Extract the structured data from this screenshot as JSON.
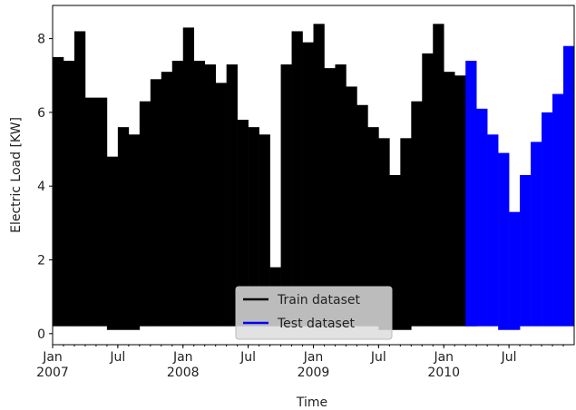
{
  "chart_data": {
    "type": "monthly-range",
    "x_label": "Time",
    "y_label": "Electric Load [KW]",
    "x": [
      "2007-01",
      "2007-02",
      "2007-03",
      "2007-04",
      "2007-05",
      "2007-06",
      "2007-07",
      "2007-08",
      "2007-09",
      "2007-10",
      "2007-11",
      "2007-12",
      "2008-01",
      "2008-02",
      "2008-03",
      "2008-04",
      "2008-05",
      "2008-06",
      "2008-07",
      "2008-08",
      "2008-09",
      "2008-10",
      "2008-11",
      "2008-12",
      "2009-01",
      "2009-02",
      "2009-03",
      "2009-04",
      "2009-05",
      "2009-06",
      "2009-07",
      "2009-08",
      "2009-09",
      "2009-10",
      "2009-11",
      "2009-12",
      "2010-01",
      "2010-02",
      "2010-03",
      "2010-04",
      "2010-05",
      "2010-06",
      "2010-07",
      "2010-08",
      "2010-09",
      "2010-10",
      "2010-11",
      "2010-12"
    ],
    "series": [
      {
        "name": "Train dataset",
        "color": "#000000",
        "values": [
          7.5,
          7.4,
          8.2,
          6.4,
          6.4,
          4.8,
          5.6,
          5.4,
          6.3,
          6.9,
          7.1,
          7.4,
          8.3,
          7.4,
          7.3,
          6.8,
          7.3,
          5.8,
          5.6,
          5.4,
          1.8,
          7.3,
          8.2,
          7.9,
          8.4,
          7.2,
          7.3,
          6.7,
          6.2,
          5.6,
          5.3,
          4.3,
          5.3,
          6.3,
          7.6,
          8.4,
          7.1,
          7.0,
          7.0,
          null,
          null,
          null,
          null,
          null,
          null,
          null,
          null,
          null
        ],
        "lows": [
          0.2,
          0.2,
          0.2,
          0.2,
          0.2,
          0.1,
          0.1,
          0.1,
          0.2,
          0.2,
          0.2,
          0.2,
          0.2,
          0.2,
          0.2,
          0.2,
          0.2,
          0.2,
          0.2,
          0.2,
          0.2,
          0.2,
          0.2,
          0.2,
          0.2,
          0.2,
          0.2,
          0.2,
          0.2,
          0.2,
          0.1,
          0.1,
          0.1,
          0.2,
          0.2,
          0.2,
          0.2,
          0.2,
          0.2,
          null,
          null,
          null,
          null,
          null,
          null,
          null,
          null,
          null
        ]
      },
      {
        "name": "Test dataset",
        "color": "#0000ff",
        "values": [
          null,
          null,
          null,
          null,
          null,
          null,
          null,
          null,
          null,
          null,
          null,
          null,
          null,
          null,
          null,
          null,
          null,
          null,
          null,
          null,
          null,
          null,
          null,
          null,
          null,
          null,
          null,
          null,
          null,
          null,
          null,
          null,
          null,
          null,
          null,
          null,
          null,
          null,
          7.4,
          6.1,
          5.4,
          4.9,
          3.3,
          4.3,
          5.2,
          6.0,
          6.5,
          7.8
        ],
        "lows": [
          null,
          null,
          null,
          null,
          null,
          null,
          null,
          null,
          null,
          null,
          null,
          null,
          null,
          null,
          null,
          null,
          null,
          null,
          null,
          null,
          null,
          null,
          null,
          null,
          null,
          null,
          null,
          null,
          null,
          null,
          null,
          null,
          null,
          null,
          null,
          null,
          null,
          null,
          0.2,
          0.2,
          0.2,
          0.1,
          0.1,
          0.2,
          0.2,
          0.2,
          0.2,
          0.2
        ]
      }
    ],
    "ylim": [
      -0.3,
      8.9
    ],
    "yticks": [
      0,
      2,
      4,
      6,
      8
    ],
    "xticks": [
      {
        "value": "2007-01",
        "label": "Jan 2007"
      },
      {
        "value": "2007-07",
        "label": "Jul"
      },
      {
        "value": "2008-01",
        "label": "Jan 2008"
      },
      {
        "value": "2008-07",
        "label": "Jul"
      },
      {
        "value": "2009-01",
        "label": "Jan 2009"
      },
      {
        "value": "2009-07",
        "label": "Jul"
      },
      {
        "value": "2010-01",
        "label": "Jan 2010"
      },
      {
        "value": "2010-07",
        "label": "Jul"
      }
    ],
    "grid": false,
    "legend": "lower center"
  }
}
